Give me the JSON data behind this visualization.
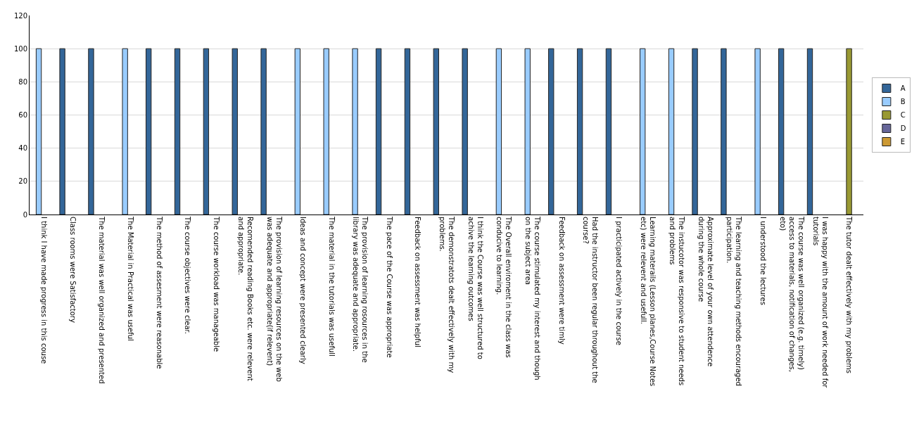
{
  "chart_data": {
    "type": "bar",
    "categories": [
      "I think I have made progress in this couse",
      "Class rooms were Satisfactory",
      "The material was well organized and presented",
      "The Material in Practical was useful",
      "The method of assesment were reasonable",
      "The course objectives were clear.",
      "The course workload was manageable",
      "Recomended reading Books etc. were relevent and appropriate.",
      "The provision of learning resources on the web was adequate and appropriate(if relevent)",
      "Ideas and concept were presented clearly",
      "The material in the tutorials was usefull",
      "The provision of learning rosources in the library was adequate and appropriate.",
      "The pace of the Course was appropriate",
      "Feedback on assessment was helpful",
      "The demonstratots dealt effectively with my problems.",
      "I think the Course was well structured to achive the learning outcomes",
      "The Overall enviroment in the class was conducive to learning.",
      "The course stimulated my interest and though on the subject area",
      "Feedback on assessment were timly",
      "Had the instructor been regular throughout the course?",
      "I practicipated actively in the course",
      "Learning materails (Lesson planes,Course Notes etc) were relevent and usefull.",
      "The instucotor was responsive to student needs and problems",
      "Approximate level of your own attendence during the whole course",
      "The learning and teaching methods encouraged participation.",
      "I understood the lectures",
      "The course was well organized (e.g. timely) access to materials, notification of changes, eto)",
      "I was happy with the amount of work needed for tutorials",
      "The tutor dealt effectively with my problems"
    ],
    "series": [
      {
        "name": "A",
        "color": "#336699",
        "values": [
          null,
          100,
          100,
          null,
          100,
          100,
          100,
          100,
          100,
          null,
          null,
          null,
          100,
          100,
          100,
          100,
          null,
          null,
          100,
          100,
          100,
          null,
          null,
          100,
          100,
          null,
          100,
          100,
          null
        ]
      },
      {
        "name": "B",
        "color": "#99ccff",
        "values": [
          100,
          null,
          null,
          100,
          null,
          null,
          null,
          null,
          null,
          100,
          100,
          100,
          null,
          null,
          null,
          null,
          100,
          100,
          null,
          null,
          null,
          100,
          100,
          null,
          null,
          100,
          null,
          null,
          null
        ]
      },
      {
        "name": "C",
        "color": "#999933",
        "values": [
          null,
          null,
          null,
          null,
          null,
          null,
          null,
          null,
          null,
          null,
          null,
          null,
          null,
          null,
          null,
          null,
          null,
          null,
          null,
          null,
          null,
          null,
          null,
          null,
          null,
          null,
          null,
          null,
          100
        ]
      },
      {
        "name": "D",
        "color": "#666699",
        "values": [
          null,
          null,
          null,
          null,
          null,
          null,
          null,
          null,
          null,
          null,
          null,
          null,
          null,
          null,
          null,
          null,
          null,
          null,
          null,
          null,
          null,
          null,
          null,
          null,
          null,
          null,
          null,
          null,
          null
        ]
      },
      {
        "name": "E",
        "color": "#cc9933",
        "values": [
          null,
          null,
          null,
          null,
          null,
          null,
          null,
          null,
          null,
          null,
          null,
          null,
          null,
          null,
          null,
          null,
          null,
          null,
          null,
          null,
          null,
          null,
          null,
          null,
          null,
          null,
          null,
          null,
          null
        ]
      }
    ],
    "ylim": [
      0,
      120
    ],
    "yticks": [
      0,
      20,
      40,
      60,
      80,
      100,
      120
    ],
    "grid": "y",
    "legend": "right"
  }
}
